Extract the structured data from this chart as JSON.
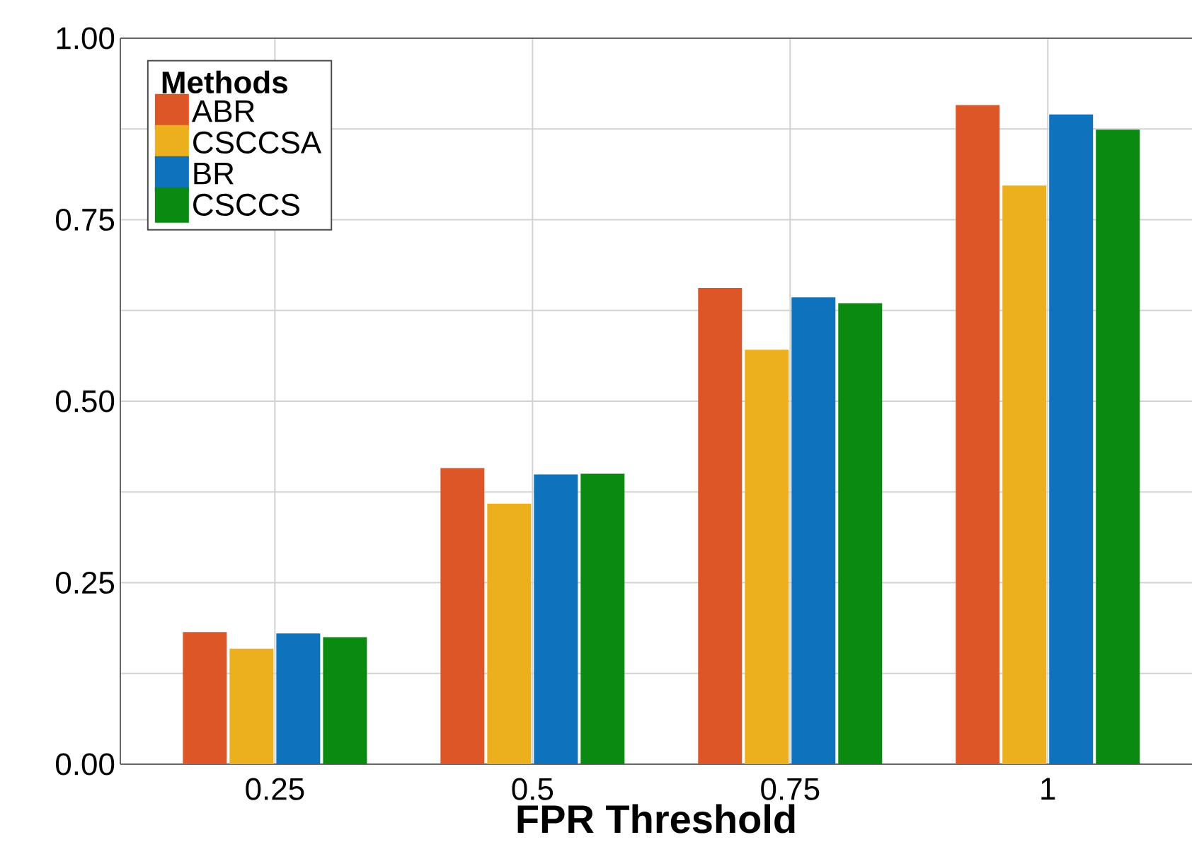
{
  "chart_data": {
    "type": "bar",
    "xlabel": "FPR Threshold",
    "legend_title": "Methods",
    "categories": [
      "0.25",
      "0.5",
      "0.75",
      "1"
    ],
    "series": [
      {
        "name": "ABR",
        "color": "#dc5627",
        "values": [
          0.182,
          0.408,
          0.656,
          0.908
        ]
      },
      {
        "name": "CSCCSA",
        "color": "#ecb01f",
        "values": [
          0.159,
          0.359,
          0.571,
          0.797
        ]
      },
      {
        "name": "BR",
        "color": "#0f72bd",
        "values": [
          0.18,
          0.399,
          0.643,
          0.895
        ]
      },
      {
        "name": "CSCCS",
        "color": "#0a8a10",
        "values": [
          0.175,
          0.4,
          0.635,
          0.874
        ]
      }
    ],
    "ylim": [
      0,
      1
    ],
    "yticks": [
      {
        "value": 0,
        "label": "0.00"
      },
      {
        "value": 0.125,
        "label": null
      },
      {
        "value": 0.25,
        "label": "0.25"
      },
      {
        "value": 0.375,
        "label": null
      },
      {
        "value": 0.5,
        "label": "0.50"
      },
      {
        "value": 0.625,
        "label": null
      },
      {
        "value": 0.75,
        "label": "0.75"
      },
      {
        "value": 0.875,
        "label": null
      },
      {
        "value": 1,
        "label": "1.00"
      }
    ],
    "grid": true,
    "legend": "top left"
  }
}
